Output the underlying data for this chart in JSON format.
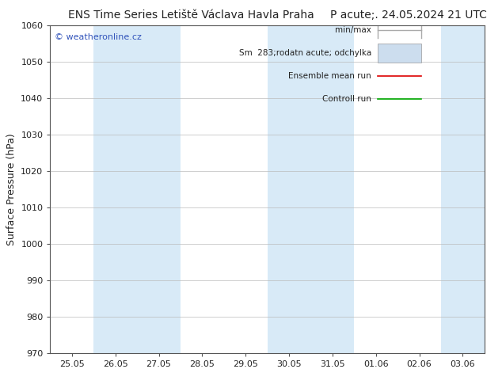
{
  "title_left": "ENS Time Series Letiště Václava Havla Praha",
  "title_right": "P acute;. 24.05.2024 21 UTC",
  "ylabel": "Surface Pressure (hPa)",
  "watermark": "© weatheronline.cz",
  "ylim": [
    970,
    1060
  ],
  "yticks": [
    970,
    980,
    990,
    1000,
    1010,
    1020,
    1030,
    1040,
    1050,
    1060
  ],
  "x_labels": [
    "25.05",
    "26.05",
    "27.05",
    "28.05",
    "29.05",
    "30.05",
    "31.05",
    "01.06",
    "02.06",
    "03.06"
  ],
  "n_steps": 10,
  "ax_bg": "#ffffff",
  "stripe_color": "#d8eaf7",
  "shaded_indices": [
    1,
    2,
    5,
    6,
    9
  ],
  "legend": [
    {
      "label": "min/max",
      "color": "#aaaaaa",
      "lw": 1.0,
      "kind": "minmax"
    },
    {
      "label": "Sm  283;rodatn acute; odchylka",
      "color": "#ccddee",
      "lw": 7,
      "kind": "band"
    },
    {
      "label": "Ensemble mean run",
      "color": "#dd0000",
      "lw": 1.2,
      "kind": "line"
    },
    {
      "label": "Controll run",
      "color": "#00aa00",
      "lw": 1.2,
      "kind": "line"
    }
  ],
  "watermark_color": "#3355bb",
  "title_fontsize": 10,
  "tick_fontsize": 8,
  "ylabel_fontsize": 9
}
